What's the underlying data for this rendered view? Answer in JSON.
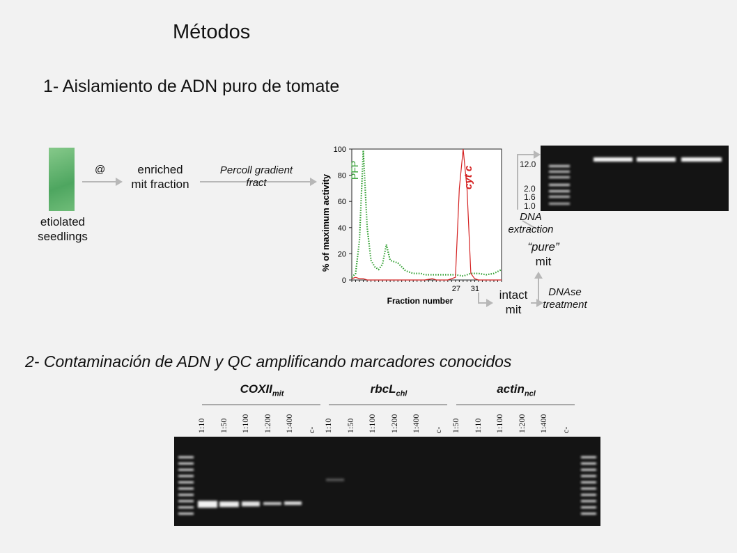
{
  "title": "Métodos",
  "section1": {
    "heading": "1- Aislamiento de ADN puro de tomate",
    "steps": {
      "seedlings": [
        "etiolated",
        "seedlings"
      ],
      "at": "@",
      "enriched": [
        "enriched",
        "mit fraction"
      ],
      "percoll": [
        "Percoll gradient",
        "fract"
      ],
      "intact": [
        "intact",
        "mit"
      ],
      "dnase": [
        "DNAse",
        "treatment"
      ],
      "pure": [
        "“pure”",
        "mit"
      ],
      "extraction": [
        "DNA",
        "extraction"
      ]
    },
    "gel_markers": [
      "12.0",
      "2.0",
      "1.6",
      "1.0"
    ]
  },
  "chart_data": {
    "type": "line",
    "xlabel": "Fraction number",
    "ylabel": "% of maximum activity",
    "ylim": [
      0,
      100
    ],
    "yticks": [
      0,
      20,
      40,
      60,
      80,
      100
    ],
    "xticks_labeled": [
      "27",
      "31"
    ],
    "xlim": [
      1,
      40
    ],
    "series": [
      {
        "name": "PFP",
        "color": "#2e9e2e",
        "style": "dotted",
        "x": [
          1,
          2,
          3,
          4,
          5,
          6,
          7,
          8,
          9,
          10,
          11,
          12,
          13,
          14,
          15,
          16,
          17,
          18,
          19,
          20,
          22,
          24,
          26,
          28,
          30,
          32,
          34,
          36,
          38,
          40
        ],
        "y": [
          2,
          5,
          30,
          99,
          40,
          15,
          10,
          8,
          12,
          27,
          15,
          14,
          13,
          10,
          7,
          6,
          5,
          5,
          5,
          4,
          4,
          4,
          4,
          4,
          3,
          5,
          5,
          4,
          5,
          8
        ]
      },
      {
        "name": "cyt c",
        "color": "#d42020",
        "style": "solid",
        "x": [
          1,
          2,
          3,
          4,
          5,
          10,
          15,
          20,
          22,
          23,
          24,
          26,
          28,
          29,
          30,
          31,
          32,
          33,
          34,
          36,
          38,
          40
        ],
        "y": [
          1,
          2,
          1,
          1,
          0,
          0,
          0,
          0,
          1,
          0,
          0,
          0,
          2,
          70,
          100,
          70,
          5,
          1,
          0,
          0,
          0,
          0
        ]
      }
    ]
  },
  "section2": {
    "heading": "2- Contaminación de ADN y QC amplificando marcadores conocidos",
    "groups": [
      {
        "name": "COXII",
        "sub": "mit",
        "lanes": [
          "1:10",
          "1:50",
          "1:100",
          "1:200",
          "1:400",
          "c-"
        ]
      },
      {
        "name": "rbcL",
        "sub": "chl",
        "lanes": [
          "1:10",
          "1:50",
          "1:100",
          "1:200",
          "1:400",
          "c-"
        ]
      },
      {
        "name": "actin",
        "sub": "ncl",
        "lanes": [
          "1:50",
          "1:10",
          "1:100",
          "1:200",
          "1:400",
          "c-"
        ]
      }
    ]
  }
}
